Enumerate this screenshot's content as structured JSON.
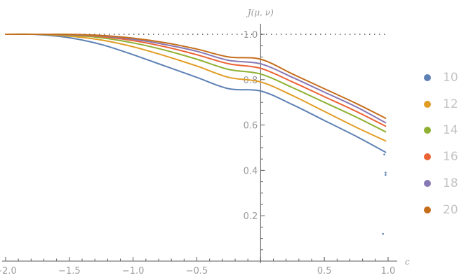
{
  "chart_data": {
    "type": "line",
    "xlabel": "c",
    "ylabel": "J(μ, ν)",
    "xlim": [
      -2.0,
      1.0
    ],
    "ylim": [
      0.0,
      1.05
    ],
    "x_ticks": [
      "-2.0",
      "-1.5",
      "-1.0",
      "-0.5",
      "0.5",
      "1.0"
    ],
    "y_ticks": [
      "0.2",
      "0.4",
      "0.6",
      "0.8",
      "1.0"
    ],
    "reference_line": {
      "y": 1.0,
      "style": "dotted"
    },
    "x": [
      -2.0,
      -1.75,
      -1.5,
      -1.25,
      -1.0,
      -0.75,
      -0.5,
      -0.25,
      0.0,
      0.25,
      0.5,
      0.75,
      0.98
    ],
    "series": [
      {
        "name": "10",
        "color": "#5e81b5",
        "values": [
          1.0,
          0.999,
          0.985,
          0.955,
          0.91,
          0.86,
          0.81,
          0.76,
          0.75,
          0.69,
          0.62,
          0.55,
          0.48
        ]
      },
      {
        "name": "12",
        "color": "#e19c24",
        "values": [
          1.0,
          1.0,
          0.992,
          0.975,
          0.945,
          0.905,
          0.86,
          0.81,
          0.79,
          0.73,
          0.66,
          0.59,
          0.53
        ]
      },
      {
        "name": "14",
        "color": "#8fb032",
        "values": [
          1.0,
          1.0,
          0.996,
          0.985,
          0.962,
          0.93,
          0.89,
          0.845,
          0.825,
          0.765,
          0.7,
          0.635,
          0.57
        ]
      },
      {
        "name": "16",
        "color": "#eb6235",
        "values": [
          1.0,
          1.0,
          0.998,
          0.99,
          0.972,
          0.945,
          0.91,
          0.87,
          0.85,
          0.79,
          0.725,
          0.66,
          0.595
        ]
      },
      {
        "name": "18",
        "color": "#8778b3",
        "values": [
          1.0,
          1.0,
          0.999,
          0.993,
          0.978,
          0.955,
          0.925,
          0.885,
          0.87,
          0.81,
          0.745,
          0.68,
          0.61
        ]
      },
      {
        "name": "20",
        "color": "#c56e1a",
        "values": [
          1.0,
          1.0,
          1.0,
          0.995,
          0.983,
          0.963,
          0.935,
          0.9,
          0.89,
          0.825,
          0.76,
          0.695,
          0.63
        ]
      }
    ],
    "stray_points": [
      {
        "x": 0.97,
        "y": 0.47,
        "color": "#5e81b5"
      },
      {
        "x": 0.98,
        "y": 0.39,
        "color": "#5e81b5"
      },
      {
        "x": 0.98,
        "y": 0.38,
        "color": "#5e81b5"
      },
      {
        "x": 0.96,
        "y": 0.12,
        "color": "#5e81b5"
      }
    ]
  }
}
